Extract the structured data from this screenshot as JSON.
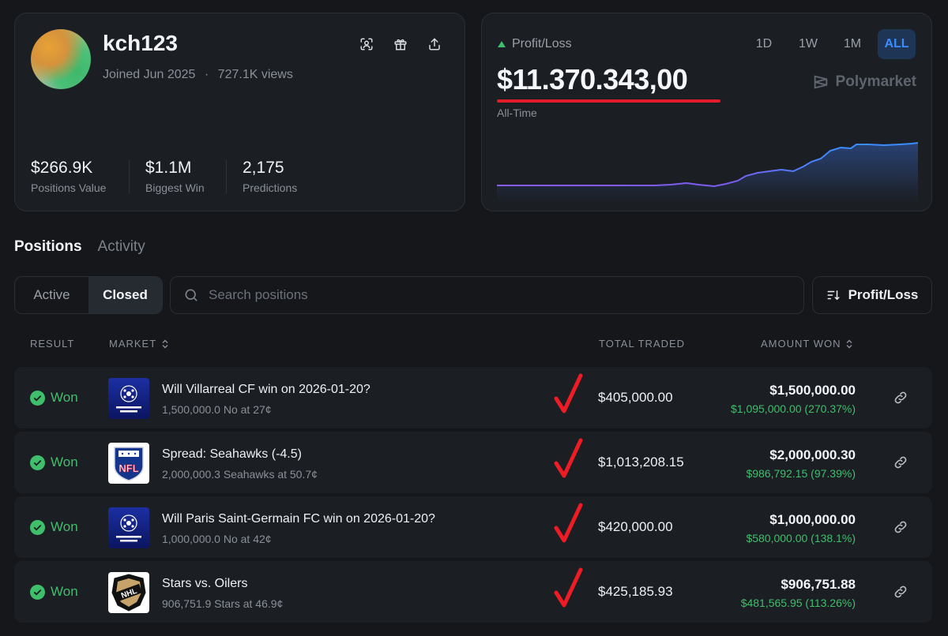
{
  "profile": {
    "username": "kch123",
    "joined": "Joined Jun 2025",
    "separator": "·",
    "views": "727.1K views",
    "stats": [
      {
        "value": "$266.9K",
        "label": "Positions Value"
      },
      {
        "value": "$1.1M",
        "label": "Biggest Win"
      },
      {
        "value": "2,175",
        "label": "Predictions"
      }
    ]
  },
  "pnl": {
    "label": "Profit/Loss",
    "value": "$11.370.343,00",
    "subtitle": "All-Time",
    "ranges": [
      "1D",
      "1W",
      "1M",
      "ALL"
    ],
    "active_range": "ALL",
    "brand": "Polymarket"
  },
  "tabs": {
    "positions": "Positions",
    "activity": "Activity"
  },
  "filters": {
    "active": "Active",
    "closed": "Closed",
    "search_placeholder": "Search positions",
    "sort_label": "Profit/Loss"
  },
  "table": {
    "headers": {
      "result": "RESULT",
      "market": "MARKET",
      "total_traded": "TOTAL TRADED",
      "amount_won": "AMOUNT WON"
    },
    "rows": [
      {
        "result": "Won",
        "logo": "champions-league",
        "title": "Will Villarreal CF win on 2026-01-20?",
        "sub": "1,500,000.0 No at 27¢",
        "traded": "$405,000.00",
        "won": "$1,500,000.00",
        "won_sub": "$1,095,000.00 (270.37%)"
      },
      {
        "result": "Won",
        "logo": "nfl",
        "title": "Spread: Seahawks (-4.5)",
        "sub": "2,000,000.3 Seahawks at 50.7¢",
        "traded": "$1,013,208.15",
        "won": "$2,000,000.30",
        "won_sub": "$986,792.15 (97.39%)"
      },
      {
        "result": "Won",
        "logo": "champions-league",
        "title": "Will Paris Saint-Germain FC win on 2026-01-20?",
        "sub": "1,000,000.0 No at 42¢",
        "traded": "$420,000.00",
        "won": "$1,000,000.00",
        "won_sub": "$580,000.00 (138.1%)"
      },
      {
        "result": "Won",
        "logo": "nhl",
        "title": "Stars vs. Oilers",
        "sub": "906,751.9 Stars at 46.9¢",
        "traded": "$425,185.93",
        "won": "$906,751.88",
        "won_sub": "$481,565.95 (113.26%)"
      }
    ]
  },
  "colors": {
    "accent": "#3b8cff",
    "positive": "#3fbf6c",
    "annotation": "#e11d2b",
    "line_start": "#8b5cf6",
    "line_end": "#3b8cff"
  }
}
